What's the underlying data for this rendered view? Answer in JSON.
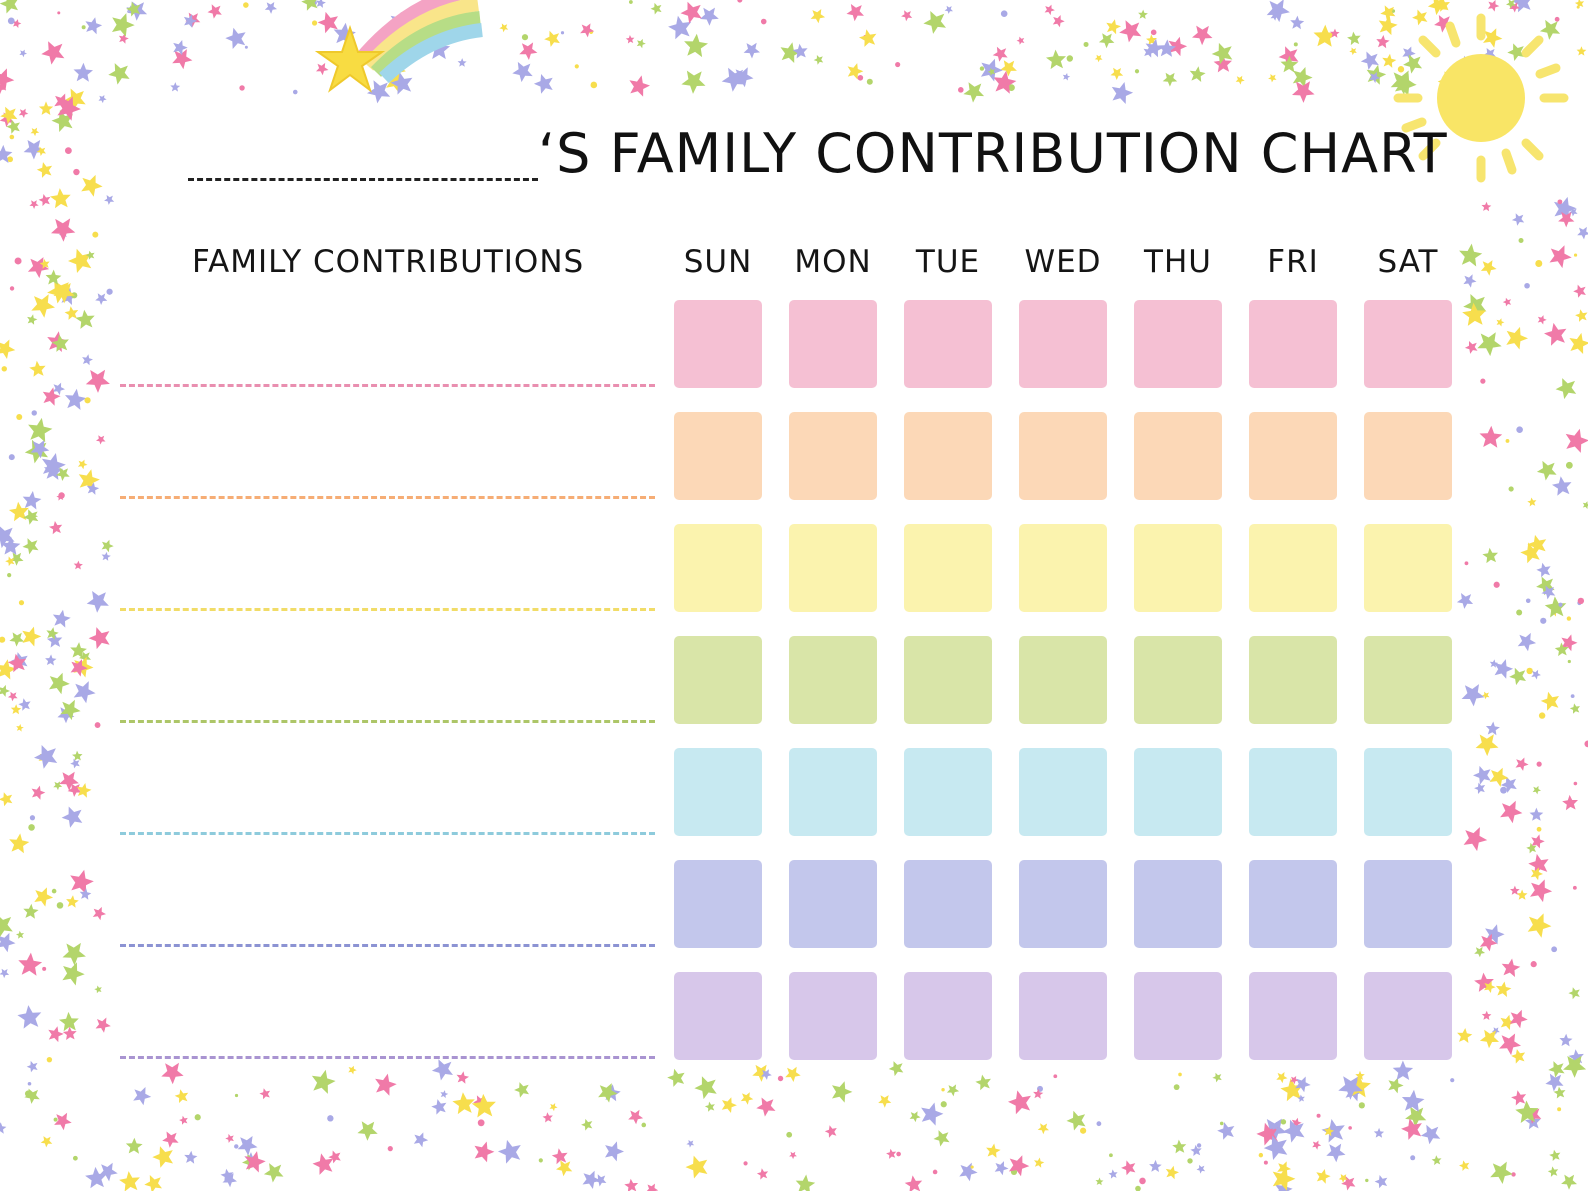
{
  "chart_title": {
    "suffix": "‘S FAMILY CONTRIBUTION CHART"
  },
  "column_header": "FAMILY CONTRIBUTIONS",
  "days": [
    "SUN",
    "MON",
    "TUE",
    "WED",
    "THU",
    "FRI",
    "SAT"
  ],
  "rows": [
    {
      "color": "#f5c0d3",
      "line_color": "#e98fb0"
    },
    {
      "color": "#fcd8b7",
      "line_color": "#f6ad75"
    },
    {
      "color": "#fbf3ae",
      "line_color": "#f1dc68"
    },
    {
      "color": "#d9e5a8",
      "line_color": "#adc668"
    },
    {
      "color": "#c7e9f1",
      "line_color": "#8ecbdc"
    },
    {
      "color": "#c3c7ec",
      "line_color": "#8c93d3"
    },
    {
      "color": "#d7c7ea",
      "line_color": "#a994d1"
    }
  ],
  "decorations": {
    "star_colors": [
      "#f07aa8",
      "#f7de4d",
      "#a9a9e6",
      "#b3d56b"
    ],
    "icons": [
      "shooting-star-rainbow-icon",
      "sun-icon"
    ]
  }
}
